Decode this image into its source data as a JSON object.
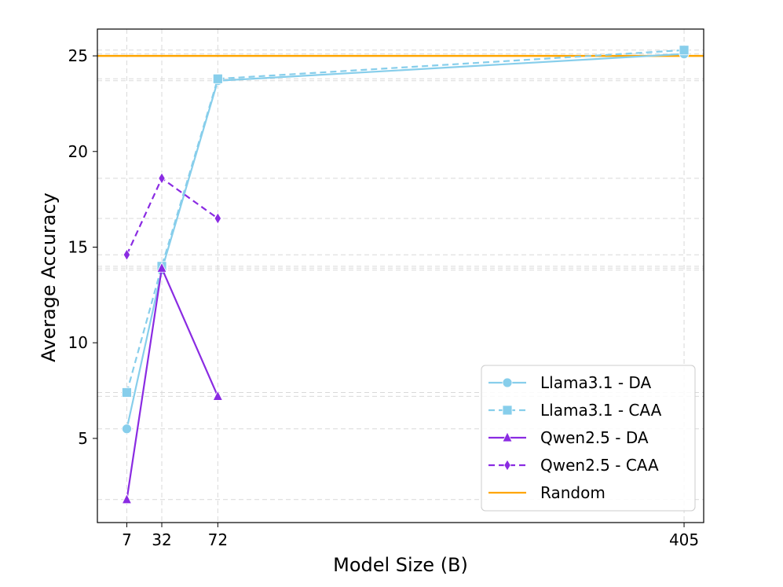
{
  "chart_data": {
    "type": "line",
    "title": "",
    "xlabel": "Model Size (B)",
    "ylabel": "Average Accuracy",
    "x_ticks": [
      "7",
      "32",
      "72",
      "405"
    ],
    "y_ticks": [
      "5",
      "10",
      "15",
      "20",
      "25"
    ],
    "xlim": [
      -14,
      419
    ],
    "ylim": [
      0.6,
      26.4
    ],
    "grid": true,
    "legend_position": "lower-right",
    "series": [
      {
        "name": "Llama3.1 - DA",
        "color": "#87CEEB",
        "marker": "circle",
        "linestyle": "solid",
        "x": [
          7,
          32,
          72,
          405
        ],
        "y": [
          5.5,
          13.8,
          23.7,
          25.1
        ]
      },
      {
        "name": "Llama3.1 - CAA",
        "color": "#87CEEB",
        "marker": "square",
        "linestyle": "dashed",
        "x": [
          7,
          32,
          72,
          405
        ],
        "y": [
          7.4,
          14.0,
          23.8,
          25.3
        ]
      },
      {
        "name": "Qwen2.5 - DA",
        "color": "#8A2BE2",
        "marker": "triangle",
        "linestyle": "solid",
        "x": [
          7,
          32,
          72
        ],
        "y": [
          1.8,
          13.9,
          7.2
        ]
      },
      {
        "name": "Qwen2.5 - CAA",
        "color": "#8A2BE2",
        "marker": "diamond",
        "linestyle": "dashed",
        "x": [
          7,
          32,
          72
        ],
        "y": [
          14.6,
          18.6,
          16.5
        ]
      }
    ],
    "reference_line": {
      "name": "Random",
      "color": "#FFA500",
      "y": 25
    }
  }
}
